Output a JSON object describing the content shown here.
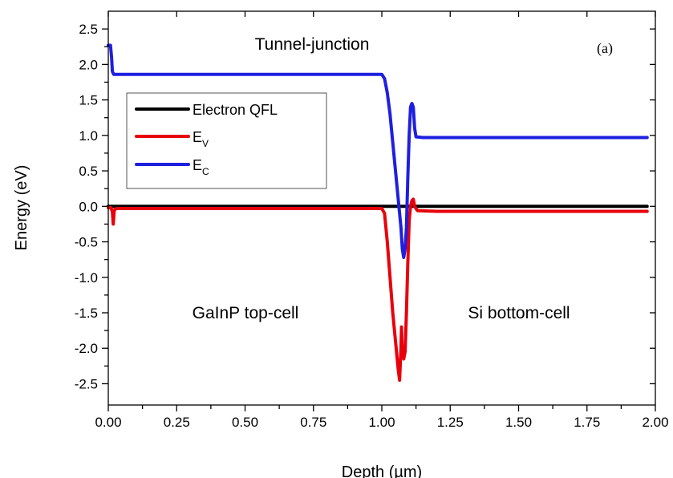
{
  "chart_data": {
    "type": "line",
    "xlabel": "Depth (µm)",
    "ylabel": "Energy (eV)",
    "xlim": [
      0,
      2.0
    ],
    "ylim": [
      -2.8,
      2.75
    ],
    "x_ticks": [
      0.0,
      0.25,
      0.5,
      0.75,
      1.0,
      1.25,
      1.5,
      1.75,
      2.0
    ],
    "x_tick_labels": [
      "0.00",
      "0.25",
      "0.50",
      "0.75",
      "1.00",
      "1.25",
      "1.50",
      "1.75",
      "2.00"
    ],
    "y_ticks": [
      2.5,
      2.0,
      1.5,
      1.0,
      0.5,
      0.0,
      -0.5,
      -1.0,
      -1.5,
      -2.0,
      -2.5
    ],
    "y_tick_labels": [
      "2.5",
      "2.0",
      "1.5",
      "1.0",
      "0.5",
      "0.0",
      "-0.5",
      "-1.0",
      "-1.5",
      "-2.0",
      "-2.5"
    ],
    "grid": false,
    "legend_position": "upper-left",
    "legend": [
      {
        "main": "Electron QFL",
        "sub": "",
        "color": "#000000"
      },
      {
        "main": "E",
        "sub": "V",
        "color": "#e8000b"
      },
      {
        "main": "E",
        "sub": "C",
        "color": "#1f1fe0"
      }
    ],
    "annotations": {
      "tunnel": "Tunnel-junction",
      "panel": "(a)",
      "top_cell": "GaInP top-cell",
      "bottom_cell": "Si bottom-cell"
    },
    "series": [
      {
        "color": "#000000",
        "points": [
          [
            0.0,
            0.0
          ],
          [
            1.97,
            0.0
          ]
        ]
      },
      {
        "color": "#e8000b",
        "points": [
          [
            0.0,
            -0.02
          ],
          [
            0.01,
            -0.02
          ],
          [
            0.015,
            -0.08
          ],
          [
            0.018,
            -0.25
          ],
          [
            0.022,
            -0.05
          ],
          [
            0.03,
            -0.03
          ],
          [
            0.5,
            -0.03
          ],
          [
            1.0,
            -0.03
          ],
          [
            1.01,
            -0.1
          ],
          [
            1.02,
            -0.5
          ],
          [
            1.03,
            -1.0
          ],
          [
            1.04,
            -1.5
          ],
          [
            1.05,
            -1.9
          ],
          [
            1.06,
            -2.3
          ],
          [
            1.065,
            -2.45
          ],
          [
            1.07,
            -2.0
          ],
          [
            1.072,
            -1.7
          ],
          [
            1.075,
            -2.1
          ],
          [
            1.08,
            -2.15
          ],
          [
            1.085,
            -2.05
          ],
          [
            1.09,
            -1.5
          ],
          [
            1.095,
            -0.8
          ],
          [
            1.1,
            -0.2
          ],
          [
            1.105,
            0.0
          ],
          [
            1.11,
            0.08
          ],
          [
            1.115,
            0.1
          ],
          [
            1.12,
            0.0
          ],
          [
            1.13,
            -0.06
          ],
          [
            1.2,
            -0.07
          ],
          [
            1.97,
            -0.07
          ]
        ]
      },
      {
        "color": "#1f1fe0",
        "points": [
          [
            0.0,
            2.27
          ],
          [
            0.008,
            2.27
          ],
          [
            0.012,
            2.1
          ],
          [
            0.015,
            1.9
          ],
          [
            0.02,
            1.86
          ],
          [
            0.5,
            1.86
          ],
          [
            1.0,
            1.86
          ],
          [
            1.01,
            1.8
          ],
          [
            1.02,
            1.6
          ],
          [
            1.03,
            1.3
          ],
          [
            1.04,
            0.9
          ],
          [
            1.05,
            0.5
          ],
          [
            1.06,
            0.1
          ],
          [
            1.07,
            -0.3
          ],
          [
            1.075,
            -0.6
          ],
          [
            1.08,
            -0.72
          ],
          [
            1.085,
            -0.6
          ],
          [
            1.09,
            -0.3
          ],
          [
            1.095,
            0.4
          ],
          [
            1.1,
            1.0
          ],
          [
            1.105,
            1.4
          ],
          [
            1.11,
            1.45
          ],
          [
            1.115,
            1.4
          ],
          [
            1.12,
            1.1
          ],
          [
            1.125,
            0.98
          ],
          [
            1.15,
            0.97
          ],
          [
            1.97,
            0.97
          ]
        ]
      }
    ]
  }
}
